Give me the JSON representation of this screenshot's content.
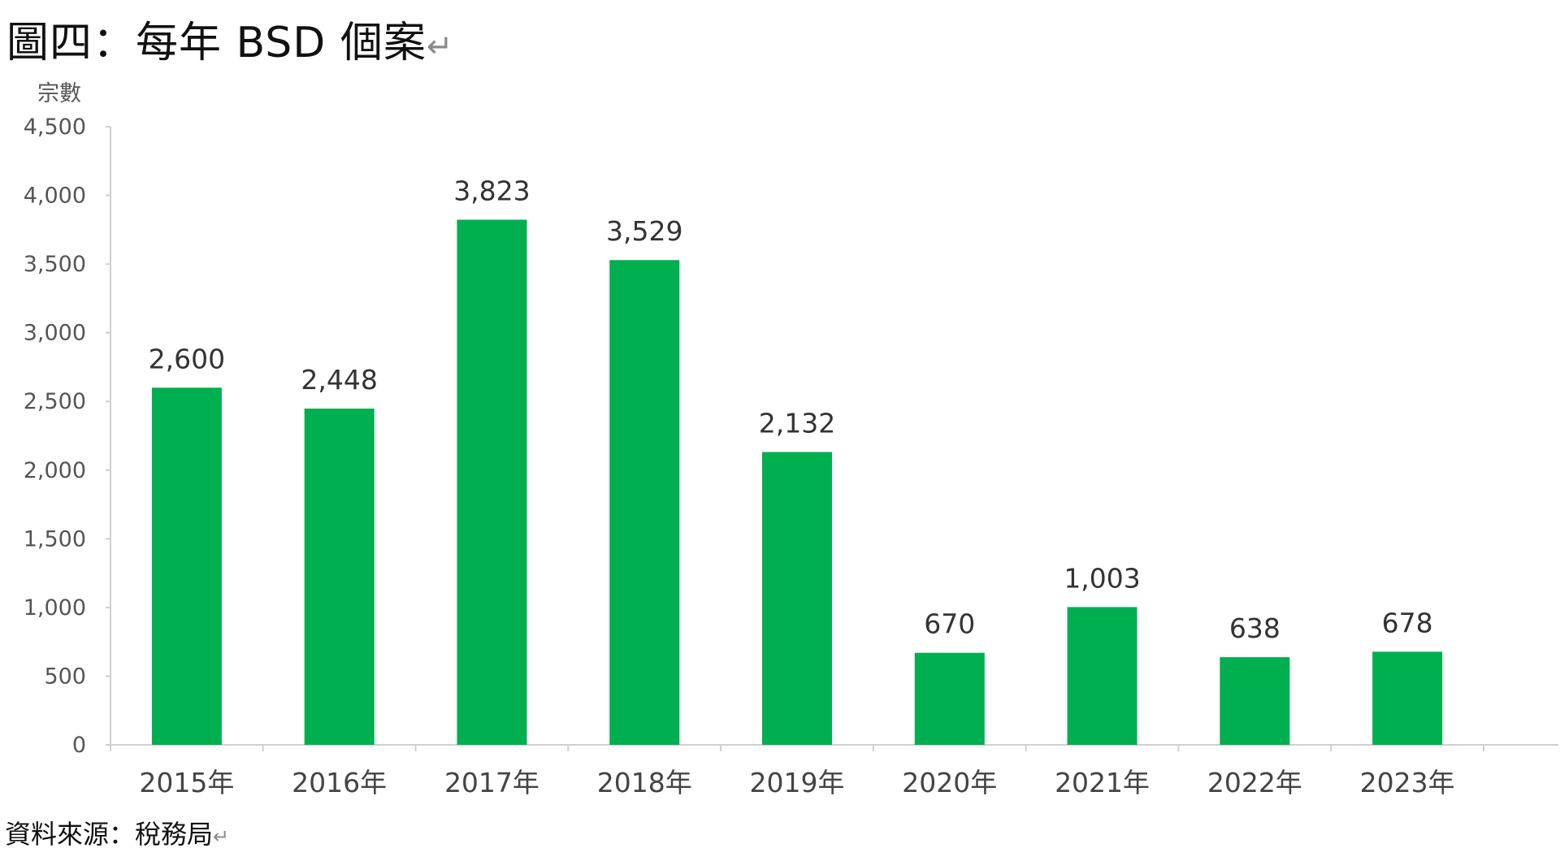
{
  "title": "圖四：每年 BSD 個案",
  "source": "資料來源：稅務局",
  "return_mark": "↵",
  "colors": {
    "bar": "#00AF50",
    "axis": "#d0d0d0",
    "text": "#222222"
  },
  "chart_data": {
    "type": "bar",
    "title": "圖四：每年 BSD 個案",
    "xlabel": "",
    "ylabel": "宗數",
    "ylim": [
      0,
      4500
    ],
    "yticks": [
      0,
      500,
      1000,
      1500,
      2000,
      2500,
      3000,
      3500,
      4000,
      4500
    ],
    "ytick_labels": [
      "0",
      "500",
      "1,000",
      "1,500",
      "2,000",
      "2,500",
      "3,000",
      "3,500",
      "4,000",
      "4,500"
    ],
    "categories": [
      "2015年",
      "2016年",
      "2017年",
      "2018年",
      "2019年",
      "2020年",
      "2021年",
      "2022年",
      "2023年"
    ],
    "values": [
      2600,
      2448,
      3823,
      3529,
      2132,
      670,
      1003,
      638,
      678
    ],
    "data_labels": [
      "2,600",
      "2,448",
      "3,823",
      "3,529",
      "2,132",
      "670",
      "1,003",
      "638",
      "678"
    ],
    "grid": false,
    "legend": "none"
  }
}
